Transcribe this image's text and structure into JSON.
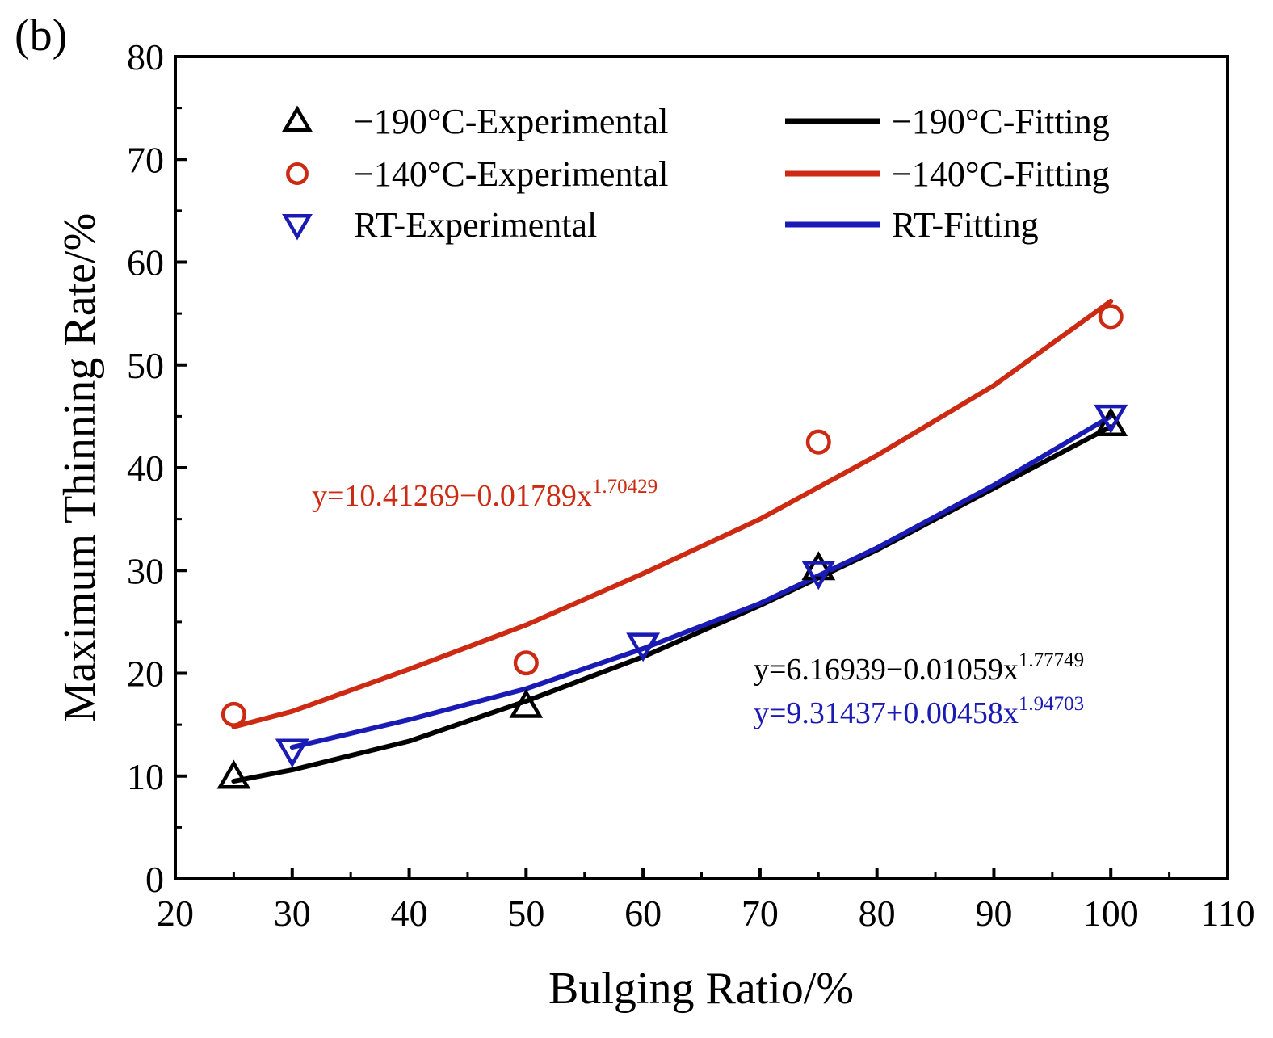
{
  "panel_label": "(b)",
  "chart_data": {
    "type": "scatter",
    "title": "",
    "xlabel": "Bulging Ratio/%",
    "ylabel": "Maximum Thinning Rate/%",
    "xlim": [
      20,
      110
    ],
    "ylim": [
      0,
      80
    ],
    "xticks": [
      20,
      30,
      40,
      50,
      60,
      70,
      80,
      90,
      100,
      110
    ],
    "yticks": [
      0,
      10,
      20,
      30,
      40,
      50,
      60,
      70,
      80
    ],
    "grid": false,
    "legend_position": "top",
    "series": [
      {
        "name": "−190°C-Experimental",
        "kind": "markers",
        "marker": "triangle-up",
        "color": "#000000",
        "x": [
          25,
          50,
          75,
          100
        ],
        "y": [
          9.9,
          16.8,
          30.2,
          44.2
        ]
      },
      {
        "name": "−140°C-Experimental",
        "kind": "markers",
        "marker": "circle",
        "color": "#cc2a12",
        "x": [
          25,
          50,
          75,
          100
        ],
        "y": [
          16.0,
          21.0,
          42.5,
          54.7
        ]
      },
      {
        "name": "RT-Experimental",
        "kind": "markers",
        "marker": "triangle-down",
        "color": "#1a1ab4",
        "x": [
          30,
          60,
          75,
          100
        ],
        "y": [
          12.5,
          22.8,
          29.8,
          45.0
        ]
      },
      {
        "name": "−190°C-Fitting",
        "kind": "line",
        "color": "#000000",
        "x": [
          25,
          30,
          40,
          50,
          60,
          70,
          80,
          90,
          100
        ],
        "y": [
          9.5,
          10.6,
          13.4,
          17.3,
          21.6,
          26.6,
          32.0,
          38.0,
          44.0
        ]
      },
      {
        "name": "−140°C-Fitting",
        "kind": "line",
        "color": "#cc2a12",
        "x": [
          25,
          30,
          40,
          50,
          60,
          70,
          80,
          90,
          100
        ],
        "y": [
          14.8,
          16.3,
          20.4,
          24.7,
          29.7,
          35.0,
          41.2,
          48.0,
          56.2
        ]
      },
      {
        "name": "RT-Fitting",
        "kind": "line",
        "color": "#1a1ab4",
        "x": [
          30,
          40,
          50,
          60,
          70,
          80,
          90,
          100
        ],
        "y": [
          12.8,
          15.5,
          18.5,
          22.4,
          26.8,
          32.2,
          38.3,
          45.0
        ]
      }
    ],
    "annotations": [
      {
        "color": "#cc2a12",
        "base": "y=10.41269−0.01789x",
        "exponent": "1.70429"
      },
      {
        "color": "#000000",
        "base": "y=6.16939−0.01059x",
        "exponent": "1.77749"
      },
      {
        "color": "#1a1ab4",
        "base": "y=9.31437+0.00458x",
        "exponent": "1.94703"
      }
    ]
  }
}
